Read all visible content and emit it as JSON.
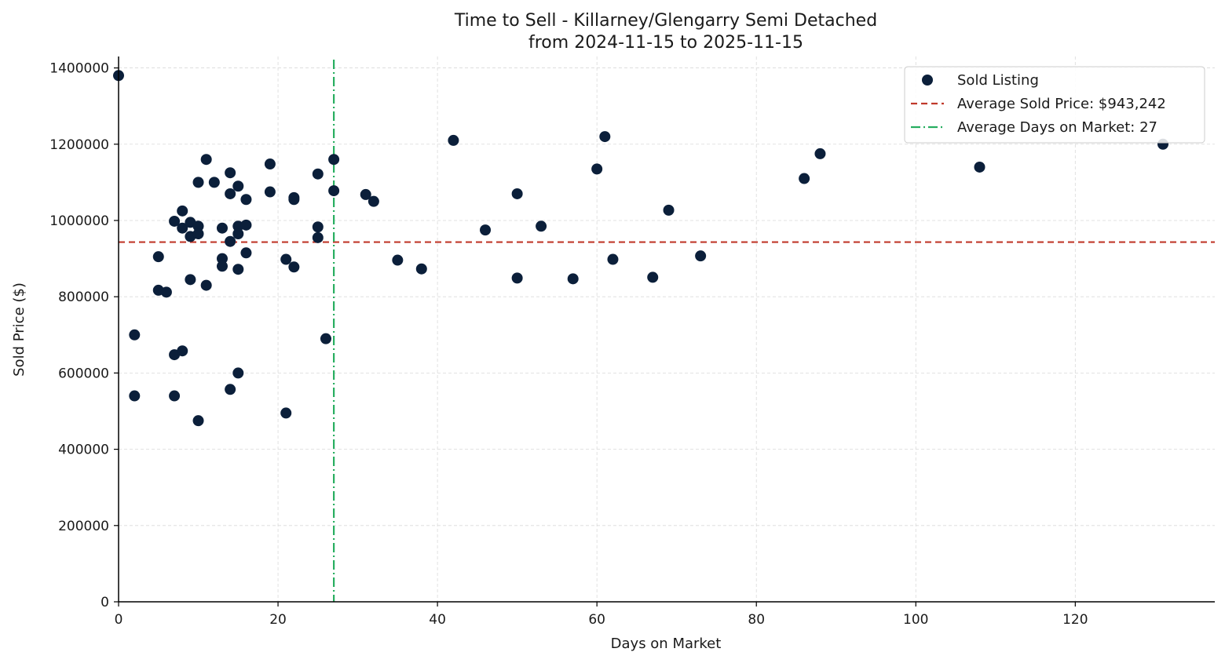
{
  "chart_data": {
    "type": "scatter",
    "title": "Time to Sell - Killarney/Glengarry Semi Detached",
    "subtitle": "from 2024-11-15 to 2025-11-15",
    "xlabel": "Days on Market",
    "ylabel": "Sold Price ($)",
    "xlim": [
      0,
      137.5
    ],
    "ylim": [
      0,
      1430000
    ],
    "xticks": [
      0,
      20,
      40,
      60,
      80,
      100,
      120
    ],
    "yticks": [
      0,
      200000,
      400000,
      600000,
      800000,
      1000000,
      1200000,
      1400000
    ],
    "grid": true,
    "legend_position": "top-right",
    "series": [
      {
        "name": "Sold Listing",
        "color": "#0b1f3a",
        "points": [
          [
            0,
            1380000
          ],
          [
            2,
            700000
          ],
          [
            2,
            540000
          ],
          [
            5,
            905000
          ],
          [
            5,
            817000
          ],
          [
            6,
            812000
          ],
          [
            7,
            998000
          ],
          [
            7,
            648000
          ],
          [
            7,
            540000
          ],
          [
            8,
            1025000
          ],
          [
            8,
            980000
          ],
          [
            8,
            658000
          ],
          [
            9,
            995000
          ],
          [
            9,
            958000
          ],
          [
            9,
            845000
          ],
          [
            10,
            1100000
          ],
          [
            10,
            985000
          ],
          [
            10,
            965000
          ],
          [
            10,
            475000
          ],
          [
            11,
            1160000
          ],
          [
            11,
            830000
          ],
          [
            12,
            1100000
          ],
          [
            13,
            980000
          ],
          [
            13,
            900000
          ],
          [
            13,
            880000
          ],
          [
            14,
            1125000
          ],
          [
            14,
            1070000
          ],
          [
            14,
            945000
          ],
          [
            14,
            557000
          ],
          [
            15,
            1090000
          ],
          [
            15,
            985000
          ],
          [
            15,
            965000
          ],
          [
            15,
            872000
          ],
          [
            15,
            600000
          ],
          [
            16,
            1055000
          ],
          [
            16,
            988000
          ],
          [
            16,
            915000
          ],
          [
            19,
            1148000
          ],
          [
            19,
            1075000
          ],
          [
            21,
            898000
          ],
          [
            21,
            495000
          ],
          [
            22,
            1060000
          ],
          [
            22,
            1055000
          ],
          [
            22,
            878000
          ],
          [
            25,
            1122000
          ],
          [
            25,
            983000
          ],
          [
            25,
            955000
          ],
          [
            26,
            690000
          ],
          [
            27,
            1160000
          ],
          [
            27,
            1078000
          ],
          [
            31,
            1068000
          ],
          [
            32,
            1050000
          ],
          [
            35,
            896000
          ],
          [
            38,
            873000
          ],
          [
            42,
            1210000
          ],
          [
            46,
            975000
          ],
          [
            50,
            1070000
          ],
          [
            50,
            849000
          ],
          [
            53,
            985000
          ],
          [
            57,
            847000
          ],
          [
            60,
            1135000
          ],
          [
            61,
            1220000
          ],
          [
            62,
            898000
          ],
          [
            67,
            851000
          ],
          [
            69,
            1027000
          ],
          [
            73,
            907000
          ],
          [
            86,
            1110000
          ],
          [
            88,
            1175000
          ],
          [
            108,
            1140000
          ],
          [
            131,
            1200000
          ]
        ]
      }
    ],
    "reference_lines": [
      {
        "name": "Average Sold Price: $943,242",
        "orientation": "horizontal",
        "value": 943242,
        "color": "#c0392b",
        "style": "dashed"
      },
      {
        "name": "Average Days on Market: 27",
        "orientation": "vertical",
        "value": 27,
        "color": "#27ae60",
        "style": "dashdot"
      }
    ]
  }
}
